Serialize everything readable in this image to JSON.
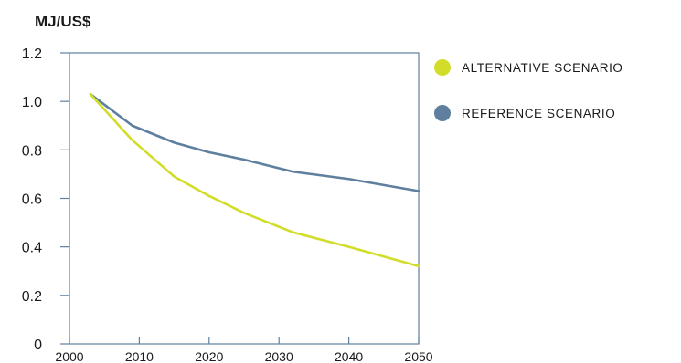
{
  "chart_data": {
    "type": "line",
    "title": "",
    "ylabel": "MJ/US$",
    "xlabel": "",
    "x": [
      2003,
      2009,
      2015,
      2020,
      2025,
      2032,
      2040,
      2050
    ],
    "x_ticks": [
      "2000",
      "2010",
      "2020",
      "2030",
      "2040",
      "2050"
    ],
    "x_tick_values": [
      2000,
      2010,
      2020,
      2030,
      2040,
      2050
    ],
    "xlim": [
      2000,
      2050
    ],
    "y_ticks": [
      "0",
      "0.2",
      "0.4",
      "0.6",
      "0.8",
      "1.0",
      "1.2"
    ],
    "y_tick_values": [
      0,
      0.2,
      0.4,
      0.6,
      0.8,
      1.0,
      1.2
    ],
    "ylim": [
      0,
      1.2
    ],
    "grid": false,
    "legend_position": "right",
    "series": [
      {
        "name": "ALTERNATIVE SCENARIO",
        "color": "#d2dd2a",
        "values": [
          1.03,
          0.84,
          0.69,
          0.61,
          0.54,
          0.46,
          0.4,
          0.32
        ]
      },
      {
        "name": "REFERENCE SCENARIO",
        "color": "#5f7f9f",
        "values": [
          1.03,
          0.9,
          0.83,
          0.79,
          0.76,
          0.71,
          0.68,
          0.63
        ]
      }
    ],
    "axis_color": "#5f7f9f"
  }
}
